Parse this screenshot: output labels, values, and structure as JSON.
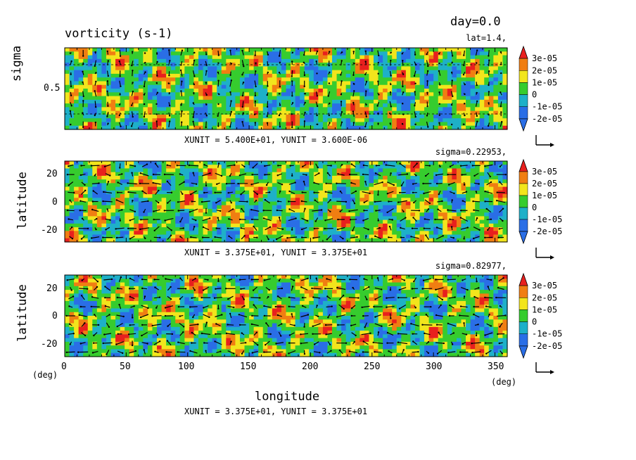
{
  "chart_data": {
    "type": "heatmap",
    "title": "vorticity (s-1)",
    "time_label": "day=0.0",
    "colorbar": {
      "labels": [
        "3e-05",
        "2e-05",
        "1e-05",
        "0",
        "-1e-05",
        "-2e-05"
      ],
      "values": [
        3e-05,
        2e-05,
        1e-05,
        0,
        -1e-05,
        -2e-05
      ],
      "colors": [
        "#e8201e",
        "#f07e12",
        "#f2e51c",
        "#36cc2e",
        "#1eb0c8",
        "#2a6ee6",
        "#8a2ad8"
      ]
    },
    "panels": [
      {
        "name": "cross-section",
        "section_label": "lat=1.4,",
        "ylabel": "sigma",
        "yticks": [
          "0.5"
        ],
        "ylim": [
          0,
          1
        ],
        "xlim": [
          0,
          360
        ],
        "vector_units": "XUNIT = 5.400E+01, YUNIT = 3.600E-06"
      },
      {
        "name": "upper-level",
        "section_label": "sigma=0.22953,",
        "ylabel": "latitude",
        "yticks": [
          "20",
          "0",
          "-20"
        ],
        "ylim": [
          -30,
          30
        ],
        "xlim": [
          0,
          360
        ],
        "vector_units": "XUNIT = 3.375E+01, YUNIT = 3.375E+01"
      },
      {
        "name": "lower-level",
        "section_label": "sigma=0.82977,",
        "ylabel": "latitude",
        "yticks": [
          "20",
          "0",
          "-20"
        ],
        "ylim": [
          -30,
          30
        ],
        "xlim": [
          0,
          360
        ],
        "xlabel": "longitude",
        "xticks": [
          "0",
          "50",
          "100",
          "150",
          "200",
          "250",
          "300",
          "350"
        ],
        "x_unit_left": "(deg)",
        "x_unit_right": "(deg)",
        "vector_units": "XUNIT = 3.375E+01, YUNIT = 3.375E+01"
      }
    ]
  }
}
